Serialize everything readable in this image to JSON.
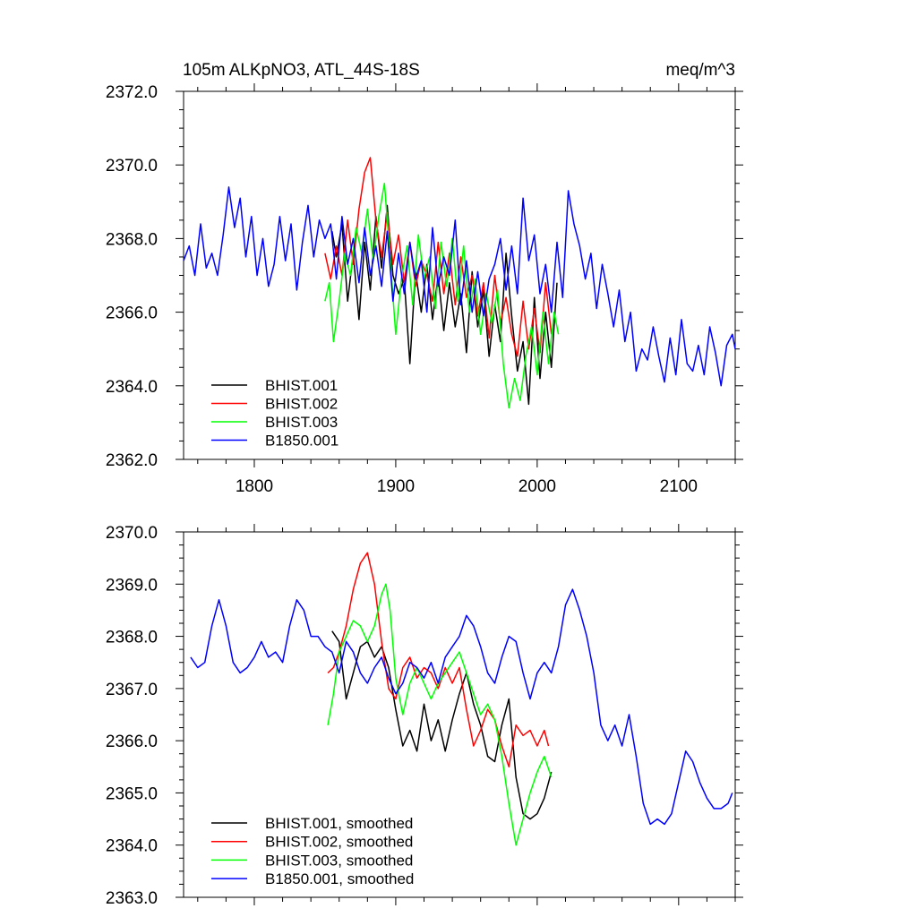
{
  "chart_data": [
    {
      "type": "line",
      "title": "105m ALKpNO3, ATL_44S-18S",
      "units": "meq/m^3",
      "xlim": [
        1750,
        2140
      ],
      "ylim": [
        2362.0,
        2372.0
      ],
      "x_ticks": [
        1800,
        1900,
        2000,
        2100
      ],
      "x_tick_labels": [
        "1800",
        "1900",
        "2000",
        "2100"
      ],
      "y_ticks": [
        2362,
        2364,
        2366,
        2368,
        2370,
        2372
      ],
      "y_tick_labels": [
        "2362.0",
        "2364.0",
        "2366.0",
        "2368.0",
        "2370.0",
        "2372.0"
      ],
      "legend_position": "bottom-left",
      "series": [
        {
          "name": "BHIST.001",
          "color": "#000000",
          "x": [
            1855,
            1858,
            1862,
            1866,
            1870,
            1874,
            1878,
            1882,
            1886,
            1890,
            1894,
            1898,
            1902,
            1906,
            1910,
            1914,
            1918,
            1922,
            1926,
            1930,
            1934,
            1938,
            1942,
            1946,
            1950,
            1954,
            1958,
            1962,
            1966,
            1970,
            1974,
            1978,
            1982,
            1986,
            1990,
            1994,
            1998,
            2002,
            2006,
            2010,
            2014
          ],
          "values": [
            2368.2,
            2367.5,
            2368.4,
            2366.3,
            2367.6,
            2365.8,
            2367.9,
            2366.6,
            2368.6,
            2367.2,
            2368.9,
            2367.0,
            2366.5,
            2366.9,
            2364.6,
            2367.1,
            2366.0,
            2367.3,
            2365.8,
            2367.0,
            2365.5,
            2366.8,
            2365.6,
            2366.5,
            2364.9,
            2367.1,
            2365.6,
            2366.6,
            2364.8,
            2366.2,
            2365.2,
            2367.6,
            2365.9,
            2364.4,
            2365.2,
            2363.5,
            2366.4,
            2364.2,
            2366.0,
            2364.5,
            2366.8
          ]
        },
        {
          "name": "BHIST.002",
          "color": "#ff0000",
          "x": [
            1850,
            1854,
            1858,
            1862,
            1866,
            1870,
            1874,
            1878,
            1882,
            1886,
            1890,
            1894,
            1898,
            1902,
            1906,
            1910,
            1914,
            1918,
            1922,
            1926,
            1930,
            1934,
            1938,
            1942,
            1946,
            1950,
            1954,
            1958,
            1962,
            1966,
            1970,
            1974,
            1978,
            1982,
            1986,
            1990,
            1994,
            1998,
            2002,
            2006,
            2010
          ],
          "values": [
            2367.6,
            2366.9,
            2367.8,
            2367.0,
            2368.5,
            2367.3,
            2368.8,
            2369.8,
            2370.2,
            2368.5,
            2367.5,
            2368.7,
            2367.3,
            2368.1,
            2366.8,
            2367.9,
            2366.7,
            2367.4,
            2367.0,
            2366.3,
            2367.9,
            2366.5,
            2367.6,
            2366.2,
            2367.5,
            2366.4,
            2367.0,
            2365.9,
            2366.8,
            2365.3,
            2367.0,
            2365.7,
            2366.4,
            2365.4,
            2364.8,
            2366.3,
            2365.0,
            2366.1,
            2364.9,
            2366.8,
            2365.4
          ]
        },
        {
          "name": "BHIST.003",
          "color": "#00ff00",
          "x": [
            1850,
            1853,
            1856,
            1860,
            1864,
            1868,
            1872,
            1876,
            1880,
            1884,
            1888,
            1892,
            1896,
            1900,
            1904,
            1908,
            1912,
            1916,
            1920,
            1924,
            1928,
            1932,
            1936,
            1940,
            1944,
            1948,
            1952,
            1956,
            1960,
            1964,
            1968,
            1972,
            1976,
            1980,
            1984,
            1988,
            1992,
            1996,
            2000,
            2004,
            2008,
            2012,
            2015
          ],
          "values": [
            2366.3,
            2366.8,
            2365.2,
            2366.3,
            2367.6,
            2367.0,
            2368.3,
            2367.6,
            2368.8,
            2367.4,
            2368.6,
            2369.5,
            2367.5,
            2365.4,
            2366.9,
            2367.8,
            2366.2,
            2368.1,
            2366.9,
            2367.5,
            2366.1,
            2367.9,
            2366.7,
            2368.0,
            2366.3,
            2367.8,
            2366.0,
            2366.9,
            2365.4,
            2366.5,
            2365.7,
            2366.6,
            2364.6,
            2363.4,
            2364.2,
            2363.6,
            2364.8,
            2365.6,
            2364.3,
            2366.0,
            2364.6,
            2366.0,
            2365.4
          ]
        },
        {
          "name": "B1850.001",
          "color": "#0000ff",
          "x": [
            1750,
            1754,
            1758,
            1762,
            1766,
            1770,
            1774,
            1778,
            1782,
            1786,
            1790,
            1794,
            1798,
            1802,
            1806,
            1810,
            1814,
            1818,
            1822,
            1826,
            1830,
            1834,
            1838,
            1842,
            1846,
            1850,
            1854,
            1858,
            1862,
            1866,
            1870,
            1874,
            1878,
            1882,
            1886,
            1890,
            1894,
            1898,
            1902,
            1906,
            1910,
            1914,
            1918,
            1922,
            1926,
            1930,
            1934,
            1938,
            1942,
            1946,
            1950,
            1954,
            1958,
            1962,
            1966,
            1970,
            1974,
            1978,
            1982,
            1986,
            1990,
            1994,
            1998,
            2002,
            2006,
            2010,
            2014,
            2018,
            2022,
            2026,
            2030,
            2034,
            2038,
            2042,
            2046,
            2050,
            2054,
            2058,
            2062,
            2066,
            2070,
            2074,
            2078,
            2082,
            2086,
            2090,
            2094,
            2098,
            2102,
            2106,
            2110,
            2114,
            2118,
            2122,
            2126,
            2130,
            2134,
            2138,
            2140
          ],
          "values": [
            2367.4,
            2367.8,
            2367.0,
            2368.4,
            2367.2,
            2367.6,
            2367.0,
            2368.1,
            2369.4,
            2368.3,
            2369.1,
            2367.5,
            2368.6,
            2367.0,
            2368.0,
            2366.7,
            2367.3,
            2368.6,
            2367.4,
            2368.4,
            2366.6,
            2367.9,
            2368.9,
            2367.5,
            2368.5,
            2368.0,
            2368.4,
            2366.9,
            2368.6,
            2367.3,
            2368.0,
            2366.8,
            2368.3,
            2367.0,
            2367.8,
            2366.7,
            2368.2,
            2366.3,
            2367.6,
            2366.5,
            2367.9,
            2366.9,
            2367.4,
            2366.0,
            2368.3,
            2366.7,
            2367.5,
            2367.0,
            2368.5,
            2366.2,
            2367.4,
            2366.0,
            2367.1,
            2365.9,
            2366.9,
            2367.3,
            2368.0,
            2366.6,
            2367.8,
            2366.5,
            2369.1,
            2367.4,
            2368.1,
            2366.5,
            2367.3,
            2366.0,
            2367.9,
            2366.4,
            2369.3,
            2368.4,
            2367.8,
            2366.9,
            2367.6,
            2366.1,
            2367.3,
            2366.5,
            2365.6,
            2366.6,
            2365.2,
            2366.0,
            2364.4,
            2365.0,
            2364.7,
            2365.6,
            2364.8,
            2364.1,
            2365.3,
            2364.3,
            2365.8,
            2364.6,
            2364.4,
            2365.1,
            2364.3,
            2365.6,
            2364.9,
            2364.0,
            2365.1,
            2365.4,
            2365.0
          ]
        }
      ]
    },
    {
      "type": "line",
      "title": "",
      "xlim": [
        1750,
        2140
      ],
      "ylim": [
        2363.0,
        2370.0
      ],
      "x_ticks": [
        1800,
        1900,
        2000,
        2100
      ],
      "y_ticks": [
        2363,
        2364,
        2365,
        2366,
        2367,
        2368,
        2369,
        2370
      ],
      "y_tick_labels": [
        "2363.0",
        "2364.0",
        "2365.0",
        "2366.0",
        "2367.0",
        "2368.0",
        "2369.0",
        "2370.0"
      ],
      "legend_position": "bottom-left",
      "series": [
        {
          "name": "BHIST.001, smoothed",
          "color": "#000000",
          "x": [
            1855,
            1860,
            1865,
            1870,
            1875,
            1880,
            1885,
            1890,
            1895,
            1900,
            1905,
            1910,
            1915,
            1920,
            1925,
            1930,
            1935,
            1940,
            1945,
            1950,
            1955,
            1960,
            1965,
            1970,
            1975,
            1980,
            1985,
            1990,
            1995,
            2000,
            2005,
            2010
          ],
          "values": [
            2368.1,
            2367.9,
            2366.8,
            2367.3,
            2367.8,
            2367.9,
            2367.6,
            2367.8,
            2367.4,
            2366.6,
            2365.9,
            2366.2,
            2365.8,
            2366.7,
            2366.0,
            2366.4,
            2365.8,
            2366.4,
            2366.9,
            2367.3,
            2366.7,
            2366.3,
            2365.7,
            2365.6,
            2366.3,
            2366.8,
            2365.3,
            2364.6,
            2364.5,
            2364.6,
            2364.9,
            2365.4
          ]
        },
        {
          "name": "BHIST.002, smoothed",
          "color": "#ff0000",
          "x": [
            1852,
            1856,
            1860,
            1865,
            1870,
            1875,
            1880,
            1885,
            1890,
            1895,
            1900,
            1905,
            1910,
            1915,
            1920,
            1925,
            1930,
            1935,
            1940,
            1945,
            1950,
            1955,
            1960,
            1965,
            1970,
            1975,
            1980,
            1985,
            1990,
            1995,
            2000,
            2005,
            2008
          ],
          "values": [
            2367.3,
            2367.4,
            2367.7,
            2368.2,
            2368.9,
            2369.4,
            2369.6,
            2369.0,
            2367.9,
            2367.0,
            2366.8,
            2367.4,
            2367.6,
            2367.2,
            2367.4,
            2367.3,
            2367.0,
            2367.4,
            2367.1,
            2367.4,
            2366.6,
            2365.9,
            2366.2,
            2366.6,
            2366.4,
            2365.9,
            2365.5,
            2366.3,
            2366.1,
            2366.2,
            2365.9,
            2366.2,
            2365.9
          ]
        },
        {
          "name": "BHIST.003, smoothed",
          "color": "#00ff00",
          "x": [
            1852,
            1856,
            1860,
            1865,
            1870,
            1875,
            1880,
            1885,
            1890,
            1893,
            1896,
            1900,
            1905,
            1910,
            1915,
            1920,
            1925,
            1930,
            1935,
            1940,
            1945,
            1950,
            1955,
            1960,
            1965,
            1970,
            1975,
            1980,
            1985,
            1990,
            1995,
            2000,
            2005,
            2010
          ],
          "values": [
            2366.3,
            2366.9,
            2367.7,
            2368.0,
            2368.3,
            2368.2,
            2367.9,
            2368.2,
            2368.8,
            2369.0,
            2368.5,
            2367.2,
            2366.5,
            2367.1,
            2367.4,
            2367.1,
            2366.8,
            2367.1,
            2367.3,
            2367.5,
            2367.7,
            2367.3,
            2366.9,
            2366.5,
            2366.7,
            2366.4,
            2365.7,
            2364.8,
            2364.0,
            2364.5,
            2365.0,
            2365.4,
            2365.7,
            2365.3
          ]
        },
        {
          "name": "B1850.001, smoothed",
          "color": "#0000ff",
          "x": [
            1755,
            1760,
            1765,
            1770,
            1775,
            1780,
            1785,
            1790,
            1795,
            1800,
            1805,
            1810,
            1815,
            1820,
            1825,
            1830,
            1835,
            1840,
            1845,
            1850,
            1855,
            1860,
            1865,
            1870,
            1875,
            1880,
            1885,
            1890,
            1895,
            1900,
            1905,
            1910,
            1915,
            1920,
            1925,
            1930,
            1935,
            1940,
            1945,
            1950,
            1955,
            1960,
            1965,
            1970,
            1975,
            1980,
            1985,
            1990,
            1995,
            2000,
            2005,
            2010,
            2015,
            2020,
            2025,
            2030,
            2035,
            2040,
            2045,
            2050,
            2055,
            2060,
            2065,
            2070,
            2075,
            2080,
            2085,
            2090,
            2095,
            2100,
            2105,
            2110,
            2115,
            2120,
            2125,
            2130,
            2135,
            2138
          ],
          "values": [
            2367.6,
            2367.4,
            2367.5,
            2368.2,
            2368.7,
            2368.2,
            2367.5,
            2367.3,
            2367.4,
            2367.6,
            2367.9,
            2367.6,
            2367.7,
            2367.5,
            2368.2,
            2368.7,
            2368.5,
            2368.0,
            2368.0,
            2367.8,
            2367.7,
            2367.3,
            2367.9,
            2367.7,
            2367.3,
            2367.1,
            2367.4,
            2367.6,
            2367.2,
            2366.9,
            2367.1,
            2367.5,
            2367.4,
            2367.2,
            2367.5,
            2367.1,
            2367.6,
            2367.8,
            2368.0,
            2368.4,
            2368.2,
            2367.8,
            2367.3,
            2367.1,
            2367.6,
            2368.0,
            2367.9,
            2367.3,
            2366.8,
            2367.3,
            2367.5,
            2367.3,
            2367.8,
            2368.6,
            2368.9,
            2368.5,
            2368.0,
            2367.3,
            2366.3,
            2366.0,
            2366.3,
            2365.9,
            2366.5,
            2365.7,
            2364.8,
            2364.4,
            2364.5,
            2364.4,
            2364.6,
            2365.2,
            2365.8,
            2365.6,
            2365.2,
            2364.9,
            2364.7,
            2364.7,
            2364.8,
            2365.0
          ]
        }
      ]
    }
  ]
}
